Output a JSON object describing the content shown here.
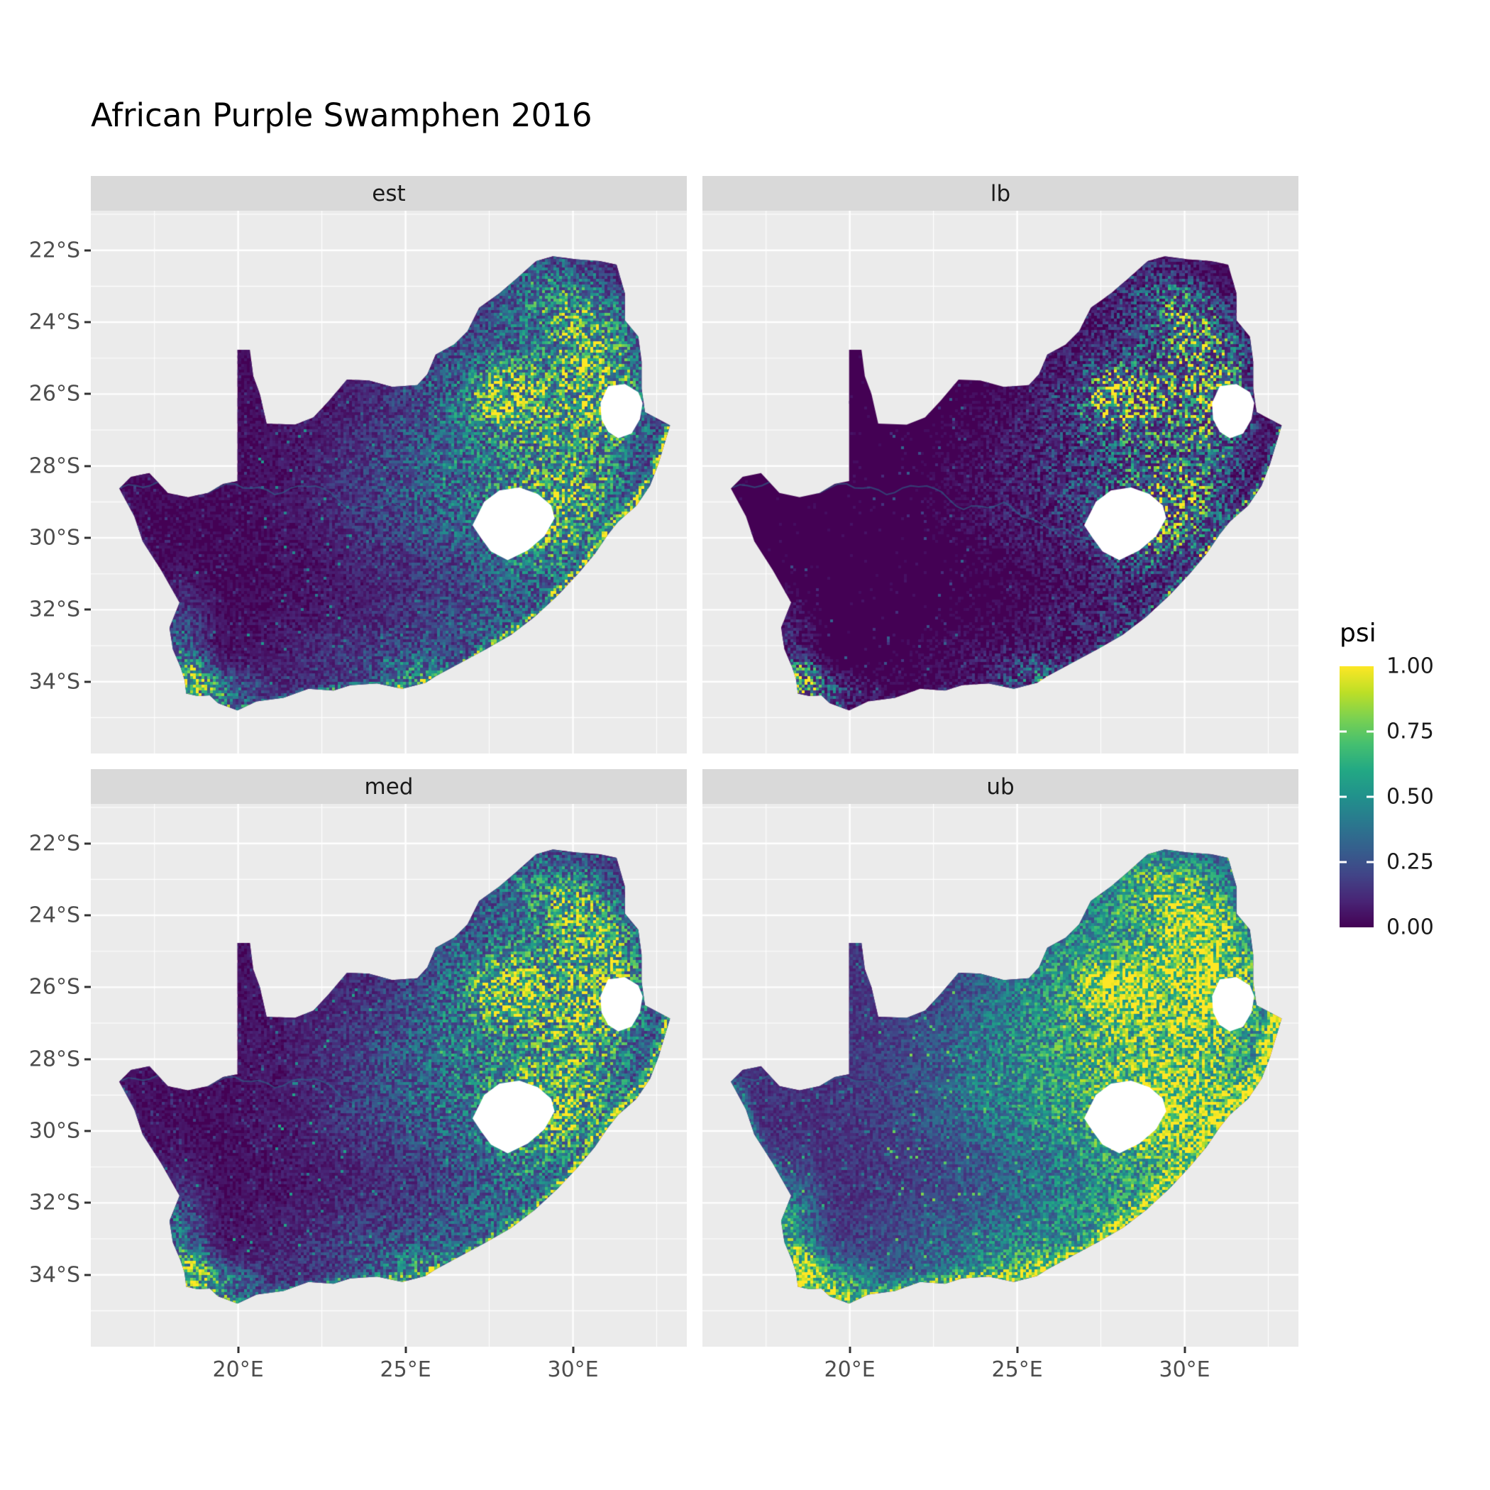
{
  "chart_data": {
    "type": "heatmap",
    "title": "African Purple Swamphen 2016",
    "facets": [
      {
        "label": "est",
        "seed": 11,
        "gamma": 1.0,
        "mult": 1.0,
        "coast_width_mult": 1.0,
        "coast_amp_mult": 1.0
      },
      {
        "label": "lb",
        "seed": 23,
        "gamma": 1.75,
        "mult": 0.95,
        "coast_width_mult": 0.8,
        "coast_amp_mult": 0.5
      },
      {
        "label": "med",
        "seed": 37,
        "gamma": 0.92,
        "mult": 1.05,
        "coast_width_mult": 1.05,
        "coast_amp_mult": 1.05
      },
      {
        "label": "ub",
        "seed": 51,
        "gamma": 0.62,
        "mult": 1.18,
        "coast_width_mult": 2.0,
        "coast_amp_mult": 1.25
      }
    ],
    "legend": {
      "title": "psi",
      "labels": [
        "1.00",
        "0.75",
        "0.50",
        "0.25",
        "0.00"
      ],
      "values": [
        1.0,
        0.75,
        0.5,
        0.25,
        0.0
      ]
    },
    "axes": {
      "x": {
        "domain": [
          15.6,
          33.4
        ],
        "ticks": [
          {
            "value": 20,
            "label": "20°E"
          },
          {
            "value": 25,
            "label": "25°E"
          },
          {
            "value": 30,
            "label": "30°E"
          }
        ],
        "minor": [
          17.5,
          22.5,
          27.5,
          32.5
        ]
      },
      "y": {
        "domain": [
          -36.0,
          -20.9
        ],
        "ticks": [
          {
            "value": -22,
            "label": "22°S"
          },
          {
            "value": -24,
            "label": "24°S"
          },
          {
            "value": -26,
            "label": "26°S"
          },
          {
            "value": -28,
            "label": "28°S"
          },
          {
            "value": -30,
            "label": "30°S"
          },
          {
            "value": -32,
            "label": "32°S"
          },
          {
            "value": -34,
            "label": "34°S"
          }
        ],
        "minor": [
          -21,
          -23,
          -25,
          -27,
          -29,
          -31,
          -33,
          -35
        ]
      }
    },
    "value_range": [
      0,
      1
    ],
    "colors": {
      "viridis": [
        "#440154",
        "#482475",
        "#414487",
        "#355f8d",
        "#2a788e",
        "#21918c",
        "#22a884",
        "#44bf70",
        "#7ad151",
        "#bddf26",
        "#fde725"
      ],
      "panel_bg": "#EBEBEB",
      "strip_bg": "#D9D9D9",
      "grid": "#FFFFFF",
      "na": "#FFFFFF",
      "axis_text": "#4D4D4D"
    },
    "map": {
      "outline": [
        [
          16.45,
          -28.63
        ],
        [
          16.8,
          -28.3
        ],
        [
          17.35,
          -28.2
        ],
        [
          17.9,
          -28.75
        ],
        [
          18.5,
          -28.87
        ],
        [
          19.1,
          -28.75
        ],
        [
          19.55,
          -28.5
        ],
        [
          19.98,
          -28.42
        ],
        [
          19.98,
          -24.77
        ],
        [
          20.35,
          -24.77
        ],
        [
          20.45,
          -25.5
        ],
        [
          20.65,
          -26.0
        ],
        [
          20.85,
          -26.82
        ],
        [
          21.7,
          -26.85
        ],
        [
          22.25,
          -26.65
        ],
        [
          22.7,
          -26.2
        ],
        [
          23.25,
          -25.6
        ],
        [
          23.9,
          -25.62
        ],
        [
          24.6,
          -25.8
        ],
        [
          25.35,
          -25.75
        ],
        [
          25.65,
          -25.45
        ],
        [
          25.9,
          -24.9
        ],
        [
          26.45,
          -24.62
        ],
        [
          26.85,
          -24.25
        ],
        [
          27.2,
          -23.6
        ],
        [
          27.8,
          -23.2
        ],
        [
          28.3,
          -22.8
        ],
        [
          28.9,
          -22.3
        ],
        [
          29.4,
          -22.17
        ],
        [
          30.1,
          -22.25
        ],
        [
          30.8,
          -22.3
        ],
        [
          31.3,
          -22.4
        ],
        [
          31.55,
          -23.2
        ],
        [
          31.55,
          -23.95
        ],
        [
          31.95,
          -24.4
        ],
        [
          32.05,
          -25.1
        ],
        [
          32.05,
          -25.85
        ],
        [
          32.15,
          -26.5
        ],
        [
          32.9,
          -26.87
        ],
        [
          32.55,
          -27.95
        ],
        [
          32.3,
          -28.55
        ],
        [
          31.9,
          -29.1
        ],
        [
          31.35,
          -29.55
        ],
        [
          31.05,
          -29.9
        ],
        [
          30.65,
          -30.45
        ],
        [
          30.15,
          -31.0
        ],
        [
          29.55,
          -31.6
        ],
        [
          28.85,
          -32.2
        ],
        [
          28.15,
          -32.7
        ],
        [
          27.4,
          -33.1
        ],
        [
          26.6,
          -33.5
        ],
        [
          25.9,
          -33.85
        ],
        [
          25.6,
          -34.03
        ],
        [
          24.9,
          -34.2
        ],
        [
          24.15,
          -34.05
        ],
        [
          23.35,
          -34.1
        ],
        [
          22.85,
          -34.25
        ],
        [
          22.1,
          -34.2
        ],
        [
          21.35,
          -34.45
        ],
        [
          20.55,
          -34.55
        ],
        [
          19.98,
          -34.8
        ],
        [
          19.4,
          -34.6
        ],
        [
          19.15,
          -34.38
        ],
        [
          18.8,
          -34.4
        ],
        [
          18.45,
          -34.33
        ],
        [
          18.4,
          -33.95
        ],
        [
          18.28,
          -33.6
        ],
        [
          18.05,
          -33.1
        ],
        [
          17.95,
          -32.5
        ],
        [
          18.25,
          -31.8
        ],
        [
          17.7,
          -30.9
        ],
        [
          17.15,
          -30.1
        ],
        [
          16.9,
          -29.4
        ],
        [
          16.45,
          -28.63
        ]
      ],
      "lesotho": [
        [
          27.0,
          -29.65
        ],
        [
          27.35,
          -29.0
        ],
        [
          27.8,
          -28.68
        ],
        [
          28.4,
          -28.6
        ],
        [
          28.95,
          -28.78
        ],
        [
          29.35,
          -29.1
        ],
        [
          29.45,
          -29.45
        ],
        [
          29.15,
          -29.95
        ],
        [
          28.65,
          -30.35
        ],
        [
          28.05,
          -30.62
        ],
        [
          27.55,
          -30.38
        ],
        [
          27.25,
          -30.0
        ]
      ],
      "eswatini": [
        [
          31.05,
          -25.78
        ],
        [
          31.55,
          -25.72
        ],
        [
          31.95,
          -25.95
        ],
        [
          32.08,
          -26.25
        ],
        [
          32.0,
          -26.7
        ],
        [
          31.75,
          -27.1
        ],
        [
          31.35,
          -27.23
        ],
        [
          31.05,
          -27.05
        ],
        [
          30.85,
          -26.7
        ],
        [
          30.82,
          -26.25
        ]
      ],
      "river": [
        [
          16.5,
          -28.6
        ],
        [
          17.6,
          -28.5
        ],
        [
          18.6,
          -28.8
        ],
        [
          19.9,
          -28.5
        ],
        [
          21.1,
          -28.75
        ],
        [
          22.3,
          -28.5
        ],
        [
          23.4,
          -29.2
        ],
        [
          24.6,
          -29.05
        ],
        [
          25.6,
          -29.6
        ],
        [
          26.6,
          -29.85
        ],
        [
          27.3,
          -30.15
        ]
      ]
    },
    "hotspots": [
      [
        28.05,
        -26.15,
        0.5,
        0.4,
        1.0
      ],
      [
        28.4,
        -25.9,
        1.5,
        1.1,
        0.5
      ],
      [
        29.1,
        -23.1,
        1.2,
        0.8,
        0.4
      ],
      [
        30.9,
        -24.9,
        0.9,
        0.9,
        0.45
      ],
      [
        30.0,
        -28.9,
        1.4,
        1.1,
        0.5
      ],
      [
        29.0,
        -30.0,
        1.2,
        1.0,
        0.4
      ],
      [
        27.8,
        -32.5,
        1.6,
        0.9,
        0.3
      ],
      [
        25.6,
        -33.9,
        0.9,
        0.45,
        0.45
      ],
      [
        18.55,
        -33.95,
        0.45,
        0.4,
        0.85
      ],
      [
        19.4,
        -34.3,
        0.9,
        0.4,
        0.5
      ],
      [
        18.35,
        -32.9,
        0.5,
        1.0,
        0.3
      ],
      [
        28.5,
        -27.3,
        3.2,
        2.8,
        0.28
      ],
      [
        26.0,
        -28.8,
        2.2,
        1.6,
        0.22
      ],
      [
        31.0,
        -26.4,
        1.0,
        1.0,
        0.5
      ],
      [
        24.0,
        -33.6,
        2.0,
        1.0,
        0.2
      ],
      [
        30.2,
        -23.9,
        0.8,
        0.7,
        0.4
      ]
    ],
    "coast_bands": [
      {
        "pts": [
          [
            32.9,
            -26.9
          ],
          [
            32.45,
            -28.2
          ],
          [
            31.75,
            -29.2
          ],
          [
            31.0,
            -29.9
          ],
          [
            30.25,
            -30.9
          ],
          [
            29.5,
            -31.6
          ]
        ],
        "amp": 0.95,
        "w": 0.16
      },
      {
        "pts": [
          [
            29.5,
            -31.6
          ],
          [
            28.5,
            -32.4
          ],
          [
            27.4,
            -33.1
          ],
          [
            26.3,
            -33.8
          ],
          [
            25.6,
            -34.0
          ]
        ],
        "amp": 0.5,
        "w": 0.14
      },
      {
        "pts": [
          [
            25.0,
            -34.15
          ],
          [
            23.3,
            -34.15
          ],
          [
            21.7,
            -34.4
          ],
          [
            20.0,
            -34.8
          ],
          [
            19.3,
            -34.55
          ]
        ],
        "amp": 0.45,
        "w": 0.13
      },
      {
        "pts": [
          [
            18.3,
            -33.2
          ],
          [
            18.1,
            -32.3
          ],
          [
            17.6,
            -31.0
          ],
          [
            17.0,
            -30.0
          ],
          [
            16.6,
            -28.9
          ]
        ],
        "amp": 0.18,
        "w": 0.12
      }
    ]
  }
}
